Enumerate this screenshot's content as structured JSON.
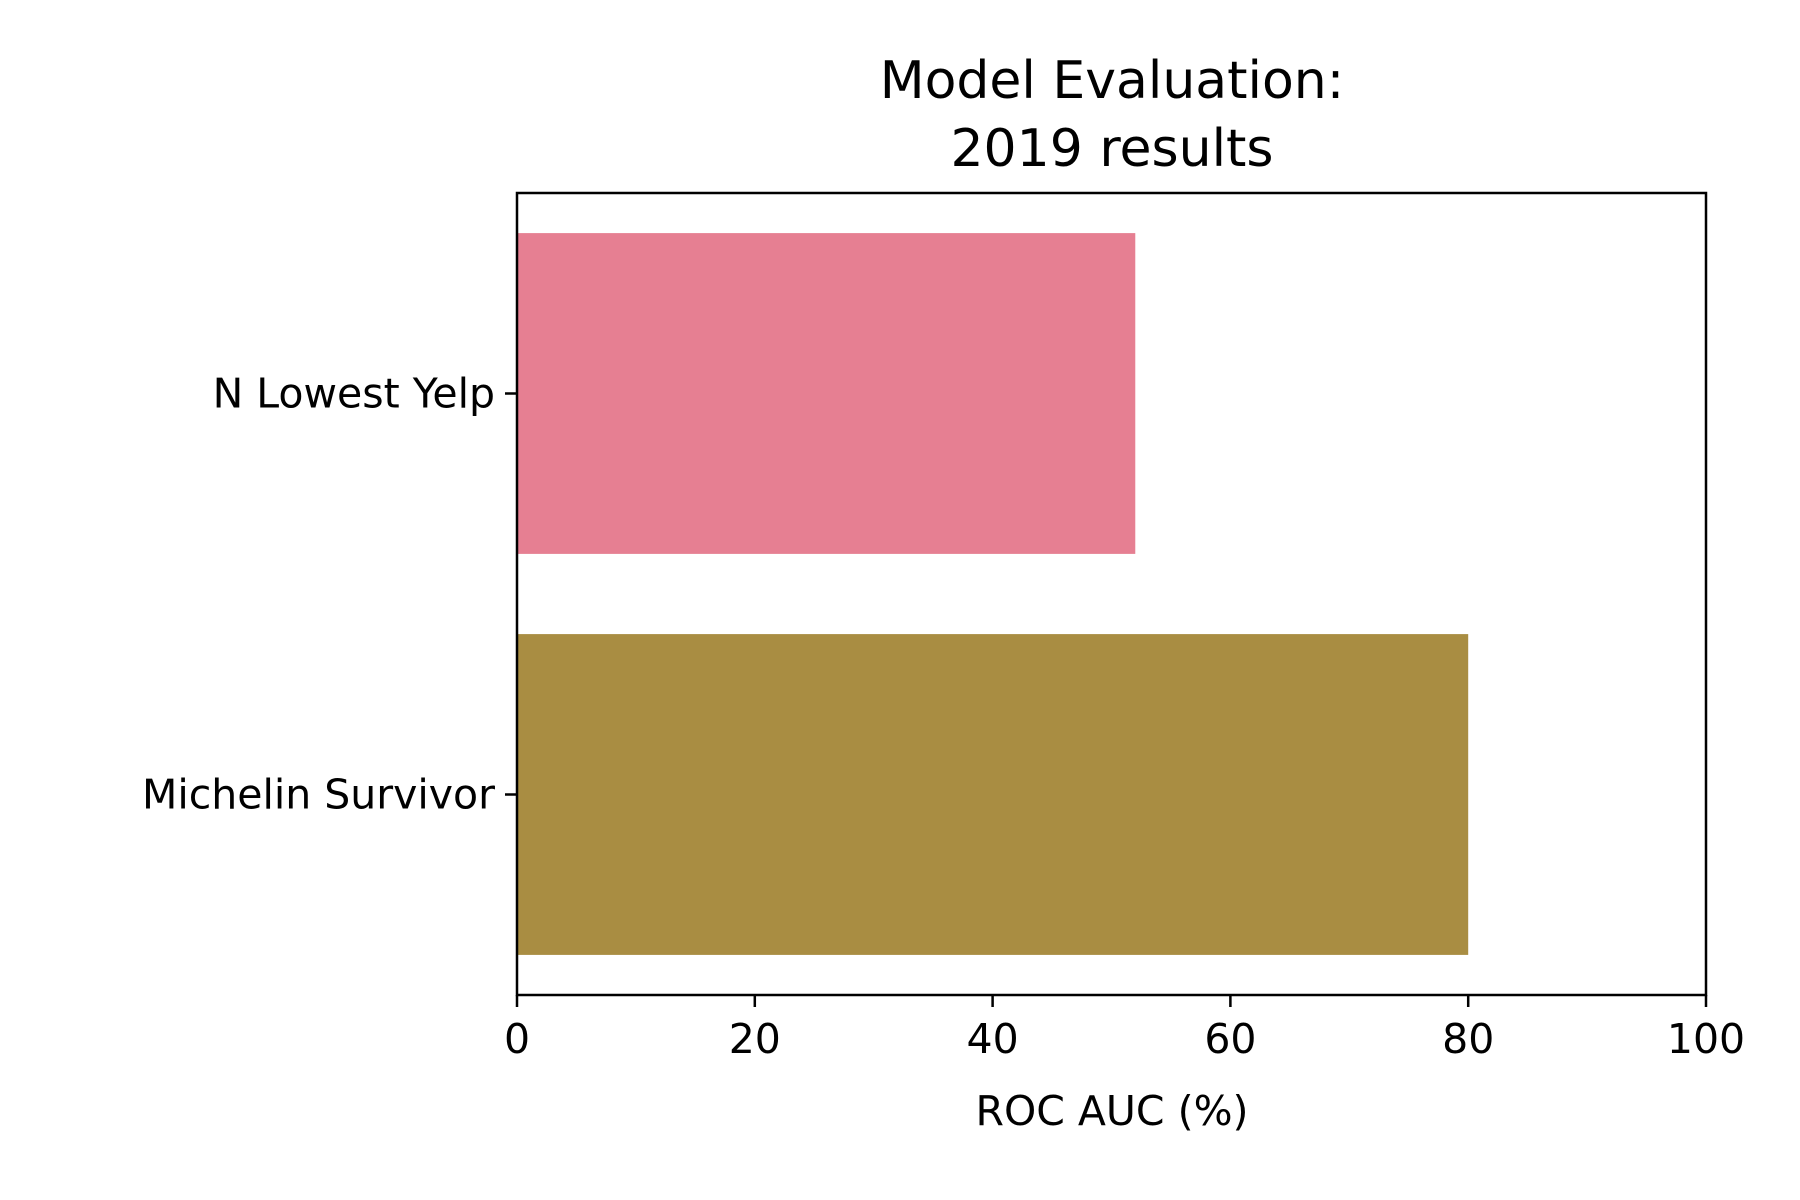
{
  "chart_data": {
    "type": "bar",
    "orientation": "horizontal",
    "title_lines": [
      "Model Evaluation:",
      "2019 results"
    ],
    "xlabel": "ROC AUC (%)",
    "ylabel": "",
    "xlim": [
      0,
      100
    ],
    "xticks": [
      0,
      20,
      40,
      60,
      80,
      100
    ],
    "xtick_labels": [
      "0",
      "20",
      "40",
      "60",
      "80",
      "100"
    ],
    "categories": [
      "N Lowest Yelp",
      "Michelin Survivor"
    ],
    "values": [
      52,
      80
    ],
    "colors": [
      "#e67f92",
      "#a98d42"
    ],
    "grid": false,
    "legend": "none"
  }
}
